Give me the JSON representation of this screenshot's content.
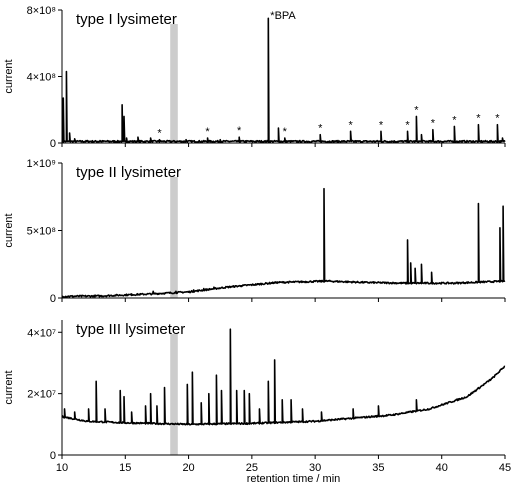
{
  "chart_data": {
    "type": "line",
    "x_axis": {
      "label": "retention time / min",
      "range": [
        10,
        45
      ],
      "ticks": [
        "10",
        "15",
        "20",
        "25",
        "30",
        "35",
        "40",
        "45"
      ]
    },
    "highlight_band": {
      "x_range": [
        18.55,
        19.15
      ],
      "color": "#cccccc"
    },
    "line_color": "#000000",
    "panels": [
      {
        "title": "type I lysimeter",
        "ylabel": "current",
        "ylim": [
          0,
          800000000.0
        ],
        "y_ticks": [
          "0",
          "4×10⁸",
          "8×10⁸"
        ],
        "y_tick_values": [
          0,
          400000000.0,
          800000000.0
        ],
        "baseline": [
          [
            10,
            10000000.0
          ],
          [
            45,
            10000000.0
          ]
        ],
        "peaks": [
          [
            10.1,
            270000000.0
          ],
          [
            10.35,
            430000000.0
          ],
          [
            10.6,
            60000000.0
          ],
          [
            11.0,
            25000000.0
          ],
          [
            12.0,
            15000000.0
          ],
          [
            13.0,
            15000000.0
          ],
          [
            14.75,
            230000000.0
          ],
          [
            14.9,
            160000000.0
          ],
          [
            15.1,
            30000000.0
          ],
          [
            16.0,
            35000000.0
          ],
          [
            17.0,
            30000000.0
          ],
          [
            17.7,
            20000000.0
          ],
          [
            19.8,
            20000000.0
          ],
          [
            21.5,
            30000000.0
          ],
          [
            22.5,
            20000000.0
          ],
          [
            24.0,
            35000000.0
          ],
          [
            26.3,
            750000000.0
          ],
          [
            27.1,
            90000000.0
          ],
          [
            27.6,
            30000000.0
          ],
          [
            30.4,
            50000000.0
          ],
          [
            32.8,
            70000000.0
          ],
          [
            35.2,
            70000000.0
          ],
          [
            37.3,
            70000000.0
          ],
          [
            38.0,
            160000000.0
          ],
          [
            38.4,
            50000000.0
          ],
          [
            39.3,
            80000000.0
          ],
          [
            41.0,
            100000000.0
          ],
          [
            42.9,
            110000000.0
          ],
          [
            44.4,
            110000000.0
          ],
          [
            44.8,
            30000000.0
          ]
        ],
        "star_markers_x": [
          17.7,
          21.5,
          24.0,
          27.6,
          30.4,
          32.8,
          35.2,
          37.3,
          38.0,
          39.3,
          41.0,
          42.9,
          44.4
        ],
        "annotation": {
          "text": "*BPA",
          "x": 26.3
        }
      },
      {
        "title": "type II lysimeter",
        "ylabel": "current",
        "ylim": [
          0,
          1000000000.0
        ],
        "y_ticks": [
          "0",
          "5×10⁸",
          "1×10⁹"
        ],
        "y_tick_values": [
          0,
          500000000.0,
          1000000000.0
        ],
        "baseline": [
          [
            10,
            12000000.0
          ],
          [
            13,
            15000000.0
          ],
          [
            17,
            30000000.0
          ],
          [
            20,
            45000000.0
          ],
          [
            23,
            80000000.0
          ],
          [
            27,
            115000000.0
          ],
          [
            31,
            125000000.0
          ],
          [
            34,
            115000000.0
          ],
          [
            37,
            110000000.0
          ],
          [
            41,
            110000000.0
          ],
          [
            45,
            125000000.0
          ]
        ],
        "peaks": [
          [
            15.5,
            30000000.0
          ],
          [
            17.2,
            50000000.0
          ],
          [
            19.0,
            50000000.0
          ],
          [
            20.4,
            60000000.0
          ],
          [
            21.2,
            70000000.0
          ],
          [
            22.0,
            80000000.0
          ],
          [
            23.4,
            60000000.0
          ],
          [
            24.2,
            50000000.0
          ],
          [
            25.4,
            50000000.0
          ],
          [
            26.9,
            80000000.0
          ],
          [
            28.2,
            50000000.0
          ],
          [
            30.7,
            810000000.0
          ],
          [
            33.2,
            60000000.0
          ],
          [
            36.3,
            50000000.0
          ],
          [
            37.3,
            430000000.0
          ],
          [
            37.55,
            260000000.0
          ],
          [
            37.9,
            220000000.0
          ],
          [
            38.4,
            250000000.0
          ],
          [
            39.2,
            190000000.0
          ],
          [
            40.7,
            90000000.0
          ],
          [
            41.8,
            60000000.0
          ],
          [
            42.9,
            700000000.0
          ],
          [
            43.3,
            120000000.0
          ],
          [
            44.6,
            520000000.0
          ],
          [
            44.85,
            680000000.0
          ]
        ]
      },
      {
        "title": "type III lysimeter",
        "ylabel": "current",
        "ylim": [
          0,
          44000000.0
        ],
        "y_ticks": [
          "0",
          "2×10⁷",
          "4×10⁷"
        ],
        "y_tick_values": [
          0,
          20000000.0,
          40000000.0
        ],
        "baseline": [
          [
            10,
            12500000.0
          ],
          [
            12,
            11000000.0
          ],
          [
            15,
            10500000.0
          ],
          [
            20,
            10000000.0
          ],
          [
            25,
            10300000.0
          ],
          [
            30,
            11000000.0
          ],
          [
            33,
            12000000.0
          ],
          [
            36,
            13000000.0
          ],
          [
            39,
            15000000.0
          ],
          [
            42,
            19000000.0
          ],
          [
            44,
            25000000.0
          ],
          [
            45,
            29000000.0
          ]
        ],
        "peaks": [
          [
            10.2,
            15000000.0
          ],
          [
            11.0,
            14000000.0
          ],
          [
            12.1,
            15000000.0
          ],
          [
            12.7,
            24000000.0
          ],
          [
            13.4,
            15000000.0
          ],
          [
            14.6,
            21000000.0
          ],
          [
            14.9,
            19000000.0
          ],
          [
            15.5,
            14000000.0
          ],
          [
            16.6,
            16000000.0
          ],
          [
            17.0,
            20000000.0
          ],
          [
            17.5,
            16000000.0
          ],
          [
            18.1,
            22000000.0
          ],
          [
            19.9,
            23000000.0
          ],
          [
            20.3,
            27000000.0
          ],
          [
            21.0,
            17000000.0
          ],
          [
            21.6,
            20000000.0
          ],
          [
            22.2,
            26000000.0
          ],
          [
            22.6,
            21000000.0
          ],
          [
            23.3,
            41000000.0
          ],
          [
            23.8,
            21000000.0
          ],
          [
            24.4,
            21000000.0
          ],
          [
            24.8,
            20000000.0
          ],
          [
            25.6,
            15000000.0
          ],
          [
            26.3,
            24000000.0
          ],
          [
            26.8,
            31000000.0
          ],
          [
            27.4,
            18000000.0
          ],
          [
            28.1,
            18000000.0
          ],
          [
            29.0,
            15000000.0
          ],
          [
            30.5,
            14000000.0
          ],
          [
            33.0,
            15000000.0
          ],
          [
            35.0,
            16000000.0
          ],
          [
            38.0,
            18000000.0
          ]
        ]
      }
    ]
  }
}
